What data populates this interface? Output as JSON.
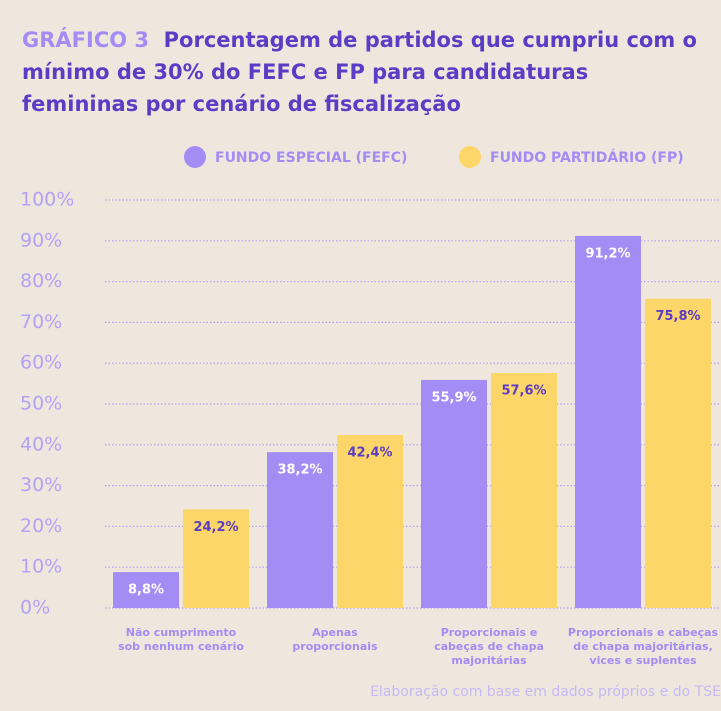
{
  "chart_data": {
    "type": "bar",
    "title_label": "GRÁFICO 3",
    "title": "Porcentagem de partidos que cumpriu com o mínimo de 30% do FEFC e  FP para candidaturas femininas por cenário de fiscalização",
    "categories": [
      "Não cumprimento\nsob nenhum cenário",
      "Apenas\nproporcionais",
      "Proporcionais e\ncabeças de chapa\nmajoritárias",
      "Proporcionais e cabeças\nde chapa majoritárias,\nvices e suplentes"
    ],
    "series": [
      {
        "name": "FUNDO ESPECIAL (FEFC)",
        "color": "#a48cf5",
        "values": [
          8.8,
          38.2,
          55.9,
          91.2
        ],
        "value_labels": [
          "8,8%",
          "38,2%",
          "55,9%",
          "91,2%"
        ]
      },
      {
        "name": "FUNDO PARTIDÁRIO (FP)",
        "color": "#fdd669",
        "values": [
          24.2,
          42.4,
          57.6,
          75.8
        ],
        "value_labels": [
          "24,2%",
          "42,4%",
          "57,6%",
          "75,8%"
        ]
      }
    ],
    "ylim": [
      0,
      100
    ],
    "yticks": [
      {
        "value": 0,
        "label": "0%"
      },
      {
        "value": 10,
        "label": "10%"
      },
      {
        "value": 20,
        "label": "20%"
      },
      {
        "value": 30,
        "label": "30%"
      },
      {
        "value": 40,
        "label": "40%"
      },
      {
        "value": 50,
        "label": "50%"
      },
      {
        "value": 60,
        "label": "60%"
      },
      {
        "value": 70,
        "label": "70%"
      },
      {
        "value": 80,
        "label": "80%"
      },
      {
        "value": 90,
        "label": "90%"
      },
      {
        "value": 100,
        "label": "100%"
      }
    ],
    "grid": true,
    "source": "Elaboração com base em dados próprios e do TSE"
  }
}
